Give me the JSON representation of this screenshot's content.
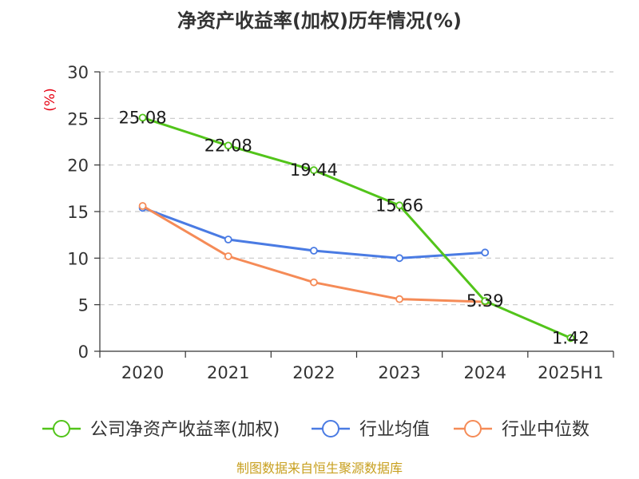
{
  "title": "净资产收益率(加权)历年情况(%)",
  "source": "制图数据来自恒生聚源数据库",
  "colors": {
    "company": "#52c41a",
    "industry_avg": "#4a7be3",
    "industry_median": "#f58b57",
    "unit": "#e60012",
    "source": "#c8a020"
  },
  "chart_data": {
    "type": "line",
    "title": "净资产收益率(加权)历年情况(%)",
    "ylabel": "(%)",
    "xlabel": "",
    "categories": [
      "2020",
      "2021",
      "2022",
      "2023",
      "2024",
      "2025H1"
    ],
    "ylim": [
      0,
      30
    ],
    "yticks": [
      "0",
      "5",
      "10",
      "15",
      "20",
      "25",
      "30"
    ],
    "grid": true,
    "legend_position": "bottom",
    "series": [
      {
        "name": "公司净资产收益率(加权)",
        "color": "#52c41a",
        "values": [
          25.08,
          22.08,
          19.44,
          15.66,
          5.39,
          1.42
        ],
        "labels": [
          "25.08",
          "22.08",
          "19.44",
          "15.66",
          "5.39",
          "1.42"
        ]
      },
      {
        "name": "行业均值",
        "color": "#4a7be3",
        "values": [
          15.4,
          12.0,
          10.8,
          10.0,
          10.6,
          null
        ],
        "labels": []
      },
      {
        "name": "行业中位数",
        "color": "#f58b57",
        "values": [
          15.6,
          10.2,
          7.4,
          5.6,
          5.3,
          null
        ],
        "labels": []
      }
    ]
  }
}
